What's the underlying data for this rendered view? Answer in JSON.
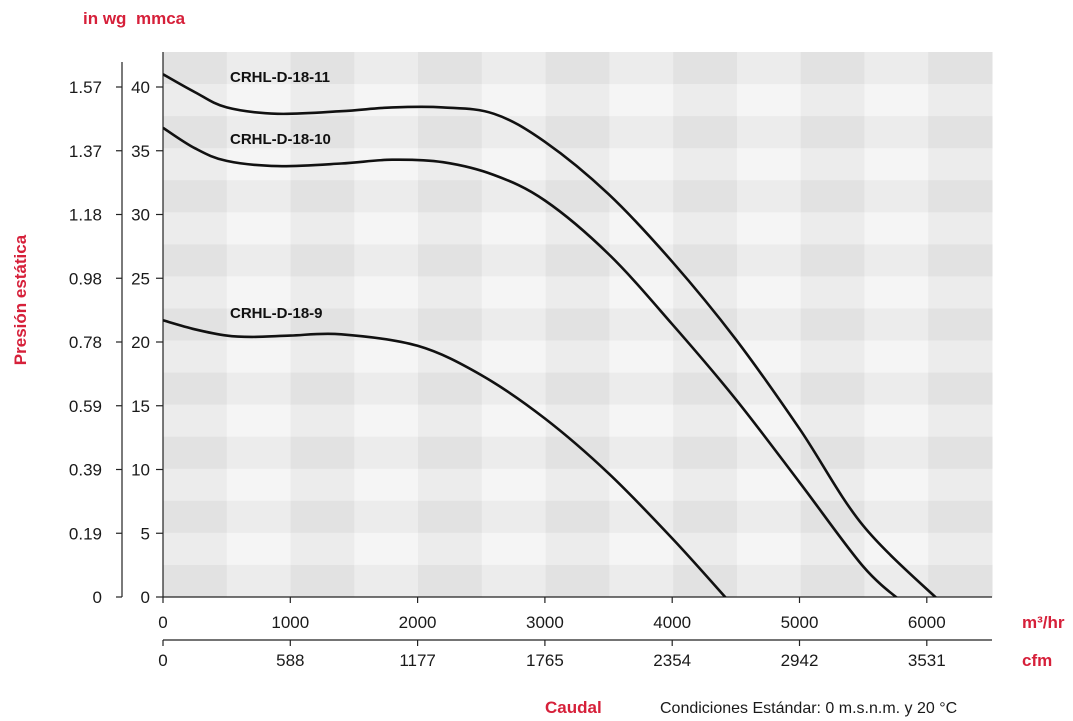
{
  "chart_data": {
    "type": "line",
    "unit_labels": {
      "y_outer": "in wg",
      "y_inner": "mmca",
      "x_top": "m³/hr",
      "x_bottom": "cfm"
    },
    "ylabel": "Presión estática",
    "xlabel": "Caudal",
    "note": "Condiciones Estándar: 0 m.s.n.m. y 20 °C",
    "xlim": [
      0,
      6500
    ],
    "ylim": [
      0,
      43
    ],
    "x_ticks_m3hr": [
      "0",
      "1000",
      "2000",
      "3000",
      "4000",
      "5000",
      "6000"
    ],
    "x_ticks_cfm": [
      "0",
      "588",
      "1177",
      "1765",
      "2354",
      "2942",
      "3531"
    ],
    "y_ticks_mmca": [
      "0",
      "5",
      "10",
      "15",
      "20",
      "25",
      "30",
      "35",
      "40"
    ],
    "y_ticks_inwg": [
      "0",
      "0.19",
      "0.39",
      "0.59",
      "0.78",
      "0.98",
      "1.18",
      "1.37",
      "1.57"
    ],
    "grid": true,
    "series": [
      {
        "name": "CRHL-D-18-11",
        "points": [
          [
            0,
            41
          ],
          [
            250,
            39.6
          ],
          [
            500,
            38.4
          ],
          [
            900,
            37.9
          ],
          [
            1400,
            38.1
          ],
          [
            1800,
            38.4
          ],
          [
            2200,
            38.4
          ],
          [
            2600,
            37.9
          ],
          [
            3000,
            35.7
          ],
          [
            3500,
            31.6
          ],
          [
            4000,
            26.3
          ],
          [
            4500,
            20.2
          ],
          [
            5000,
            13.2
          ],
          [
            5500,
            5.6
          ],
          [
            6120,
            -0.5
          ]
        ]
      },
      {
        "name": "CRHL-D-18-10",
        "points": [
          [
            0,
            36.8
          ],
          [
            250,
            35.2
          ],
          [
            500,
            34.2
          ],
          [
            900,
            33.8
          ],
          [
            1400,
            34
          ],
          [
            1800,
            34.3
          ],
          [
            2200,
            34.1
          ],
          [
            2600,
            33.1
          ],
          [
            3000,
            31.1
          ],
          [
            3500,
            26.9
          ],
          [
            4000,
            21.4
          ],
          [
            4500,
            15.5
          ],
          [
            5000,
            9
          ],
          [
            5500,
            2.4
          ],
          [
            5820,
            -0.5
          ]
        ]
      },
      {
        "name": "CRHL-D-18-9",
        "points": [
          [
            0,
            21.7
          ],
          [
            250,
            21
          ],
          [
            500,
            20.5
          ],
          [
            700,
            20.4
          ],
          [
            1000,
            20.5
          ],
          [
            1400,
            20.6
          ],
          [
            2000,
            19.7
          ],
          [
            2500,
            17.4
          ],
          [
            3000,
            14
          ],
          [
            3500,
            9.7
          ],
          [
            4000,
            4.6
          ],
          [
            4460,
            -0.5
          ]
        ]
      }
    ]
  }
}
